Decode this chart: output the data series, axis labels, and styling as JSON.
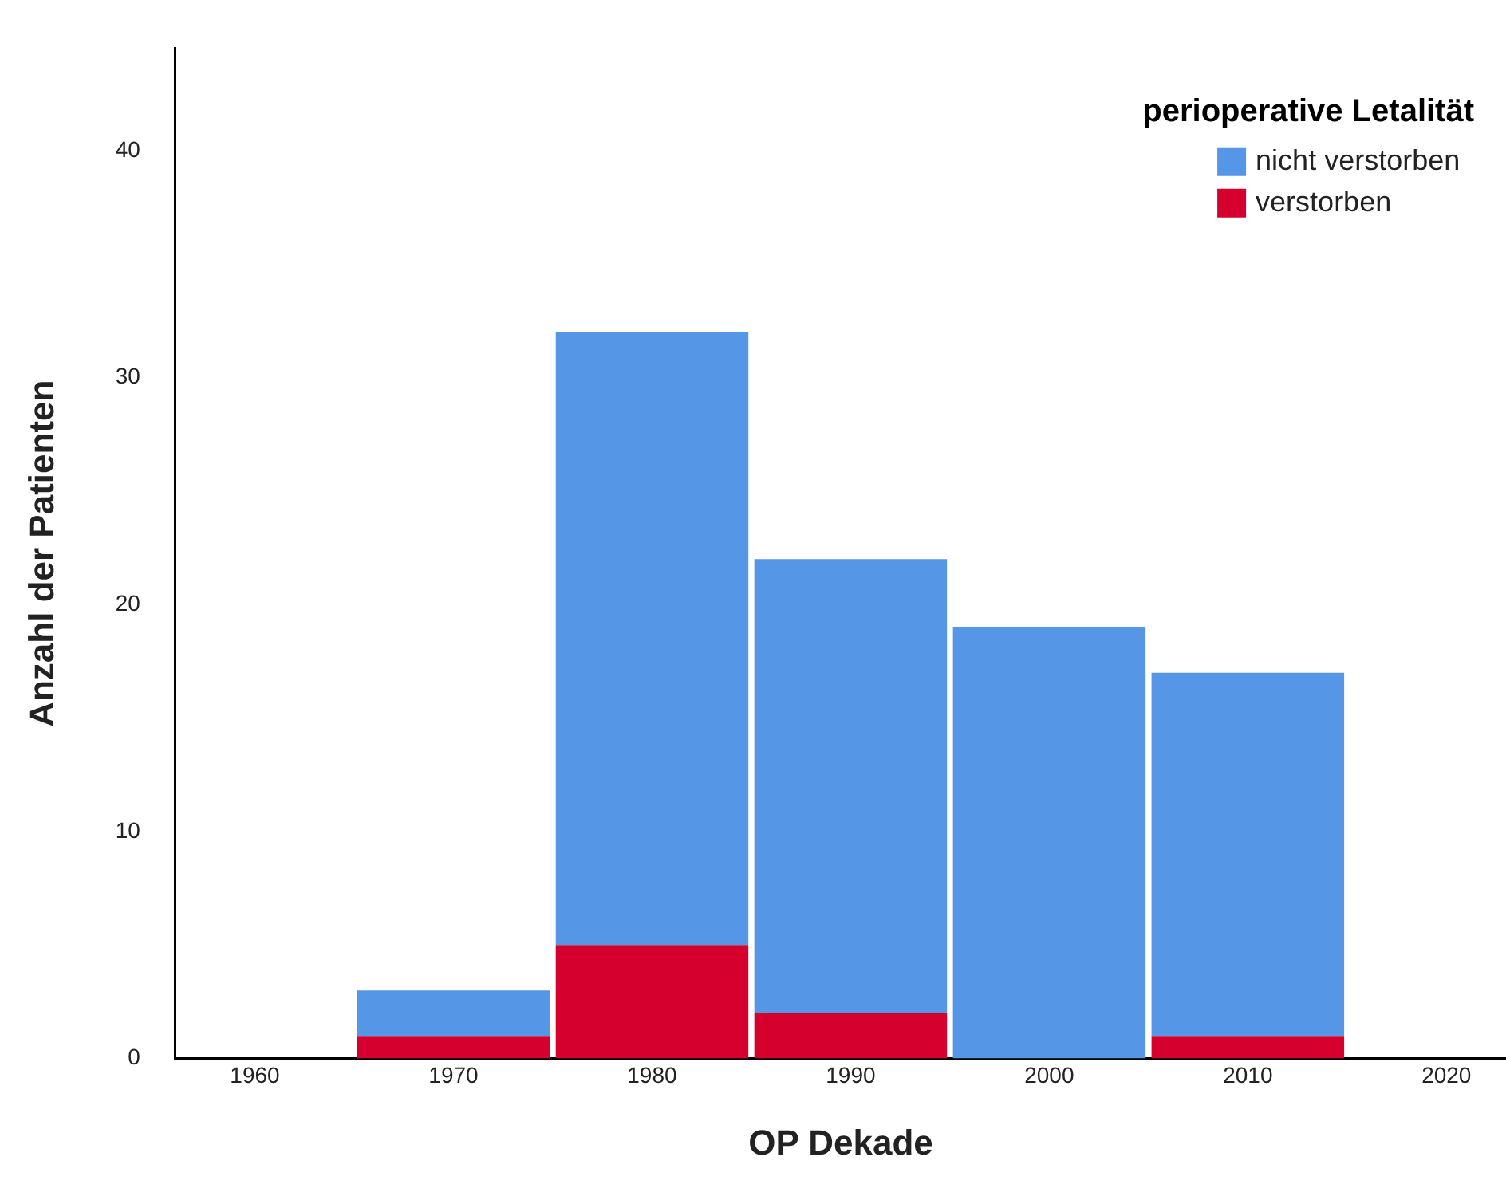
{
  "chart_data": {
    "type": "bar",
    "xlabel": "OP Dekade",
    "ylabel": "Anzahl der Patienten",
    "legend_title": "perioperative Letalität",
    "x": [
      1970,
      1980,
      1990,
      2000,
      2010
    ],
    "series": [
      {
        "name": "verstorben",
        "color": "#d6002f",
        "values": [
          1,
          5,
          2,
          0,
          1
        ]
      },
      {
        "name": "nicht verstorben",
        "color": "#5596e6",
        "values": [
          2,
          27,
          20,
          19,
          16
        ]
      }
    ],
    "stacked": true,
    "xlim": [
      1956,
      2023
    ],
    "xticks": [
      1960,
      1970,
      1980,
      1990,
      2000,
      2010,
      2020
    ],
    "ylim": [
      0,
      44.5
    ],
    "yticks": [
      0,
      10,
      20,
      30,
      40
    ],
    "grid": false,
    "legend": "top right"
  }
}
